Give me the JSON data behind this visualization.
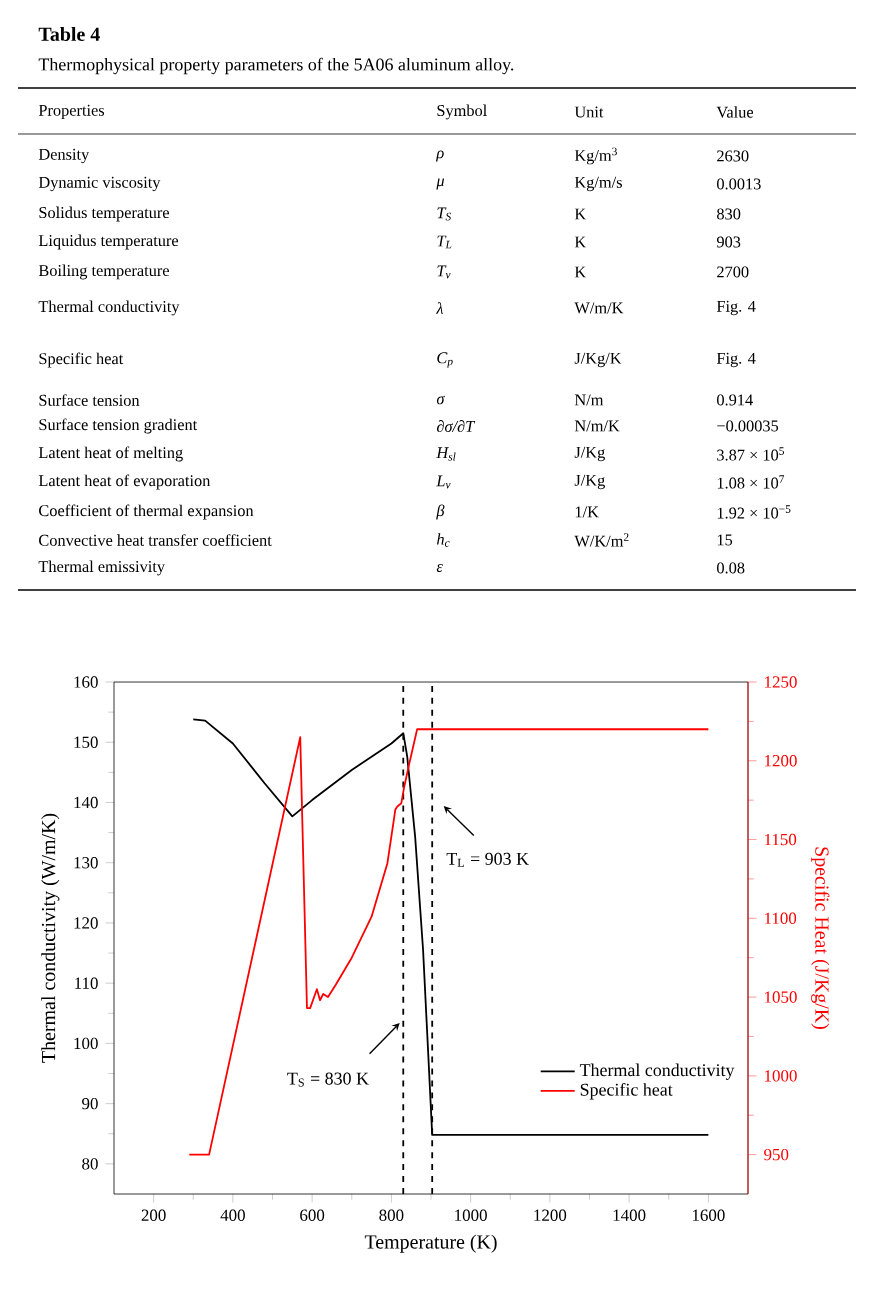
{
  "chart_data": [
    {
      "type": "other",
      "title": "Table 4",
      "subtitle": "Thermophysical property parameters of the 5A06 aluminum alloy.",
      "annotations": [
        "Properties",
        "Symbol",
        "Unit",
        "Value",
        "Density",
        "ρ",
        "Kg/m$^{3}$",
        "2630",
        "Dynamic viscosity",
        "μ",
        "Kg/m/s",
        "0.0013",
        "Solidus temperature",
        "T$_{S}$",
        "K",
        "830",
        "Liquidus temperature",
        "T$_{L}$",
        "K",
        "903",
        "Boiling temperature",
        "T$_{v}$",
        "K",
        "2700",
        "Thermal conductivity",
        "λ",
        "W/m/K",
        "Fig. 4",
        "Specific heat",
        "C$_{p}$",
        "J/Kg/K",
        "Fig. 4",
        "Surface tension",
        "σ",
        "N/m",
        "0.914",
        "Surface tension gradient",
        "∂σ/∂T",
        "N/m/K",
        "−0.00035",
        "Latent heat of melting",
        "H$_{sl}$",
        "J/Kg",
        "3.87 × 10$^{5}$",
        "Latent heat of evaporation",
        "L$_{v}$",
        "J/Kg",
        "1.08 × 10$^{7}$",
        "Coefficient of thermal expansion",
        "β",
        "1/K",
        "1.92 × 10$^{−5}$",
        "Convective heat transfer coefficient",
        "h$_{c}$",
        "W/K/m$^{2}$",
        "15",
        "Thermal emissivity",
        "ε",
        null,
        "0.08"
      ]
    },
    {
      "type": "line",
      "xlabel": "Temperature (K)",
      "ylabel": "Thermal conductivity (W/m/K)",
      "y2label": "Specific Heat (J/Kg/K)",
      "xlim": [
        100,
        1700
      ],
      "xticks": [
        200,
        400,
        600,
        800,
        1000,
        1200,
        1400,
        1600
      ],
      "ylim": [
        75,
        160
      ],
      "yticks": [
        80,
        90,
        100,
        110,
        120,
        130,
        140,
        150,
        160
      ],
      "y2lim": [
        925,
        1250
      ],
      "y2ticks": [
        950,
        1000,
        1050,
        1100,
        1150,
        1200,
        1250
      ],
      "legend": "bottom right",
      "series": [
        {
          "name": "Thermal conductivity",
          "color": "#000000",
          "axis": "y",
          "x": [
            300,
            330,
            400,
            480,
            550,
            600,
            700,
            800,
            830,
            840,
            860,
            880,
            895,
            903,
            1600
          ],
          "values": [
            153.8,
            153.6,
            149.8,
            143.2,
            137.7,
            140.4,
            145.4,
            149.8,
            151.5,
            147.6,
            134.3,
            115.5,
            95.6,
            84.8,
            84.8
          ]
        },
        {
          "name": "Specific heat",
          "color": "#ff0000",
          "axis": "y2",
          "x": [
            290,
            340,
            570,
            587,
            595,
            605,
            612,
            620,
            628,
            640,
            660,
            700,
            750,
            790,
            810,
            815,
            825,
            832,
            845,
            865,
            1600
          ],
          "values": [
            950,
            950,
            1215,
            1043,
            1043,
            1050,
            1055,
            1048,
            1052,
            1050,
            1058,
            1075,
            1101,
            1135,
            1169,
            1171,
            1173,
            1183,
            1198,
            1220,
            1220
          ]
        }
      ],
      "ref_lines": [
        {
          "axis": "x",
          "value": 830,
          "label": "T$_{S}$ = 830 K",
          "color": "#000000",
          "line_style": "dashed"
        },
        {
          "axis": "x",
          "value": 903,
          "label": "T$_{L}$ = 903 K",
          "color": "#000000",
          "line_style": "dashed"
        }
      ]
    }
  ]
}
